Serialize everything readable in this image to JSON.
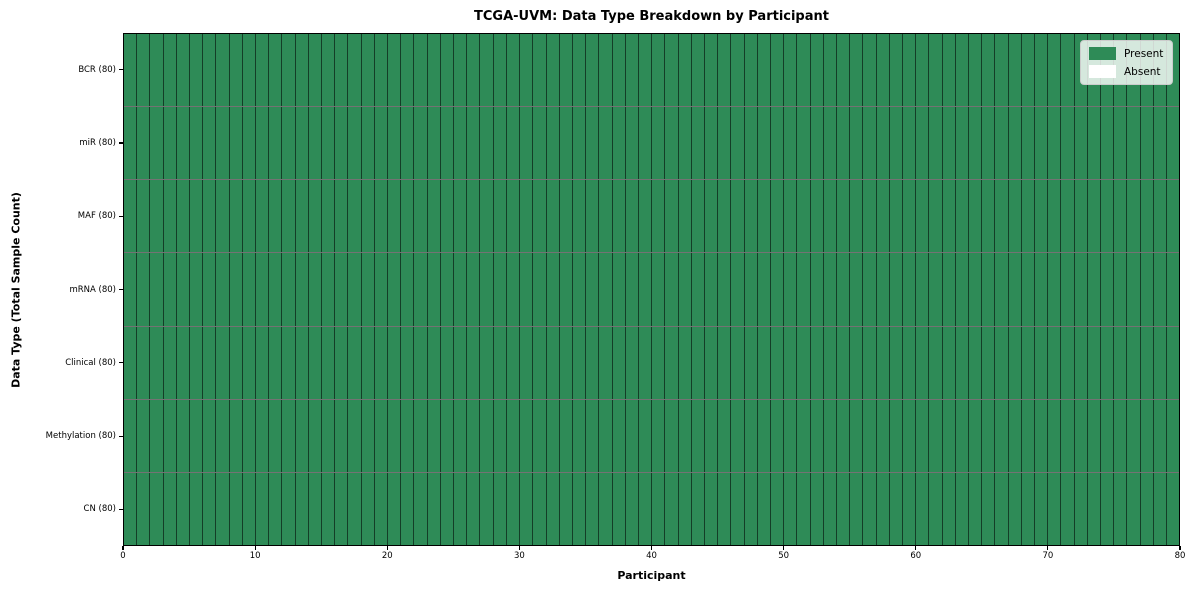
{
  "chart_data": {
    "type": "heatmap",
    "title": "TCGA-UVM: Data Type Breakdown by Participant",
    "xlabel": "Participant",
    "ylabel": "Data Type (Total Sample Count)",
    "rows": [
      {
        "label": "BCR (80)",
        "present_count": 80,
        "absent_count": 0
      },
      {
        "label": "miR (80)",
        "present_count": 80,
        "absent_count": 0
      },
      {
        "label": "MAF (80)",
        "present_count": 80,
        "absent_count": 0
      },
      {
        "label": "mRNA (80)",
        "present_count": 80,
        "absent_count": 0
      },
      {
        "label": "Clinical (80)",
        "present_count": 80,
        "absent_count": 0
      },
      {
        "label": "Methylation (80)",
        "present_count": 80,
        "absent_count": 0
      },
      {
        "label": "CN (80)",
        "present_count": 80,
        "absent_count": 0
      }
    ],
    "n_participants": 80,
    "all_cells_present": true,
    "xlim": [
      0,
      80
    ],
    "x_ticks": [
      0,
      10,
      20,
      30,
      40,
      50,
      60,
      70,
      80
    ],
    "grid": "cell-edges",
    "legend_position": "upper-right",
    "legend": [
      {
        "label": "Present",
        "color": "#2e8b57"
      },
      {
        "label": "Absent",
        "color": "#ffffff"
      }
    ],
    "colors": {
      "present": "#2e8b57",
      "absent": "#ffffff",
      "cell_edge": "rgba(0,0,0,0.55)",
      "plot_border": "#000000"
    }
  }
}
